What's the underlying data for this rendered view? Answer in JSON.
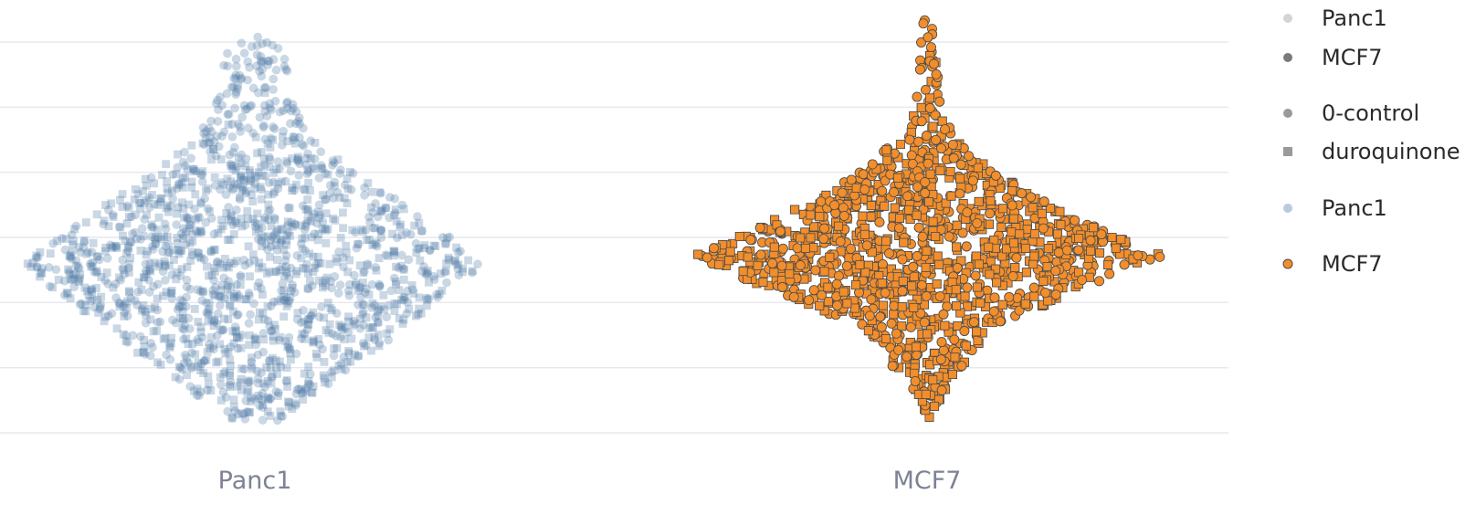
{
  "chart_data": {
    "type": "scatter",
    "subtype": "beeswarm",
    "title": "",
    "xlabel": "",
    "ylabel": "",
    "categories": [
      "Panc1",
      "MCF7"
    ],
    "y_gridlines": 7,
    "y_tick_labels_visible": false,
    "series": [
      {
        "name": "Panc1",
        "category": "Panc1",
        "color": "#4e79a7",
        "opacity": 0.3,
        "marker_outline": false,
        "shape_mix": {
          "0-control": "circle",
          "duroquinone": "square"
        }
      },
      {
        "name": "MCF7",
        "category": "MCF7",
        "color": "#f28e2b",
        "opacity": 1.0,
        "marker_outline": true,
        "outline_color": "#4a4a4a",
        "shape_mix": {
          "0-control": "circle",
          "duroquinone": "square"
        }
      }
    ],
    "legend": {
      "position": "right",
      "groups": [
        [
          {
            "label": "Panc1",
            "symbol": "circle",
            "color": "#d4d4d4"
          },
          {
            "label": "MCF7",
            "symbol": "circle",
            "color": "#7a7a7a"
          }
        ],
        [
          {
            "label": "0-control",
            "symbol": "circle",
            "color": "#9a9a9a"
          },
          {
            "label": "duroquinone",
            "symbol": "square",
            "color": "#9a9a9a"
          }
        ],
        [
          {
            "label": "Panc1",
            "symbol": "circle",
            "color": "#b9cade"
          }
        ],
        [
          {
            "label": "MCF7",
            "symbol": "circle",
            "color": "#f28e2b",
            "outline": "#4a4a4a"
          }
        ]
      ]
    }
  }
}
